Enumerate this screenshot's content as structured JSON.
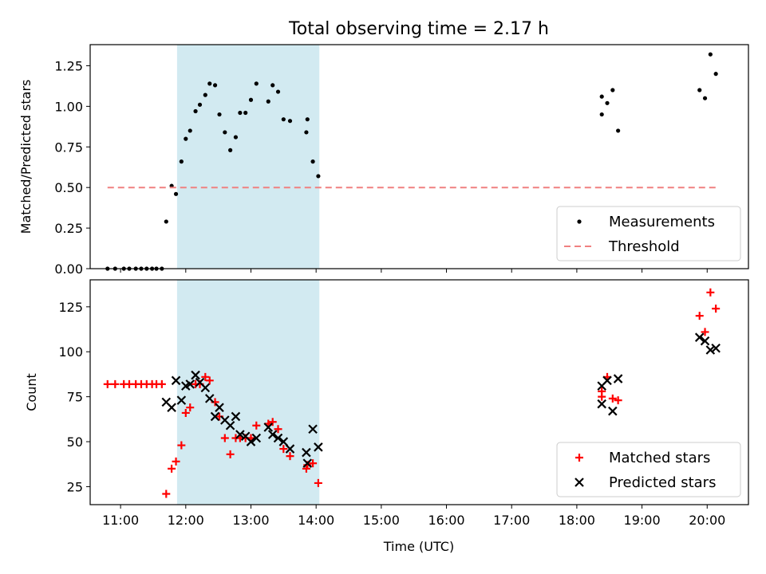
{
  "chart_data": {
    "type": "scatter",
    "title": "Total observing time = 2.17 h",
    "xlabel": "Time (UTC)",
    "xticks": [
      "11:00",
      "12:00",
      "13:00",
      "14:00",
      "15:00",
      "16:00",
      "17:00",
      "18:00",
      "19:00",
      "20:00"
    ],
    "xlim": [
      "10:32",
      "20:38"
    ],
    "shaded_interval": {
      "start": "11:52",
      "end": "14:03",
      "color": "#add8e6"
    },
    "panels": [
      {
        "ylabel": "Matched/Predicted stars",
        "ylim": [
          0,
          1.38
        ],
        "yticks": [
          "0.00",
          "0.25",
          "0.50",
          "0.75",
          "1.00",
          "1.25"
        ],
        "legend": {
          "placement": "lower-right",
          "entries": [
            {
              "label": "Measurements",
              "marker": "dot",
              "color": "#000000"
            },
            {
              "label": "Threshold",
              "marker": "dashed-line",
              "color": "#f08080"
            }
          ]
        },
        "series": [
          {
            "name": "Measurements",
            "marker": "dot",
            "color": "#000000",
            "points": [
              [
                "10:48",
                0.0
              ],
              [
                "10:55",
                0.0
              ],
              [
                "11:03",
                0.0
              ],
              [
                "11:08",
                0.0
              ],
              [
                "11:14",
                0.0
              ],
              [
                "11:19",
                0.0
              ],
              [
                "11:24",
                0.0
              ],
              [
                "11:29",
                0.0
              ],
              [
                "11:33",
                0.0
              ],
              [
                "11:38",
                0.0
              ],
              [
                "11:42",
                0.29
              ],
              [
                "11:47",
                0.51
              ],
              [
                "11:51",
                0.46
              ],
              [
                "11:56",
                0.66
              ],
              [
                "12:00",
                0.8
              ],
              [
                "12:04",
                0.85
              ],
              [
                "12:09",
                0.97
              ],
              [
                "12:13",
                1.01
              ],
              [
                "12:18",
                1.07
              ],
              [
                "12:22",
                1.14
              ],
              [
                "12:27",
                1.13
              ],
              [
                "12:31",
                0.95
              ],
              [
                "12:36",
                0.84
              ],
              [
                "12:41",
                0.73
              ],
              [
                "12:46",
                0.81
              ],
              [
                "12:50",
                0.96
              ],
              [
                "12:55",
                0.96
              ],
              [
                "13:00",
                1.04
              ],
              [
                "13:05",
                1.14
              ],
              [
                "13:16",
                1.03
              ],
              [
                "13:20",
                1.13
              ],
              [
                "13:25",
                1.09
              ],
              [
                "13:30",
                0.92
              ],
              [
                "13:36",
                0.91
              ],
              [
                "13:51",
                0.84
              ],
              [
                "13:52",
                0.92
              ],
              [
                "13:57",
                0.66
              ],
              [
                "14:02",
                0.57
              ],
              [
                "18:23",
                1.06
              ],
              [
                "18:23",
                0.95
              ],
              [
                "18:28",
                1.02
              ],
              [
                "18:33",
                1.1
              ],
              [
                "18:38",
                0.85
              ],
              [
                "19:53",
                1.1
              ],
              [
                "19:58",
                1.05
              ],
              [
                "20:03",
                1.32
              ],
              [
                "20:08",
                1.2
              ]
            ]
          },
          {
            "name": "Threshold",
            "marker": "dashed-line",
            "color": "#f08080",
            "points": [
              [
                "10:48",
                0.5
              ],
              [
                "20:08",
                0.5
              ]
            ]
          }
        ]
      },
      {
        "ylabel": "Count",
        "ylim": [
          15,
          140
        ],
        "yticks": [
          "25",
          "50",
          "75",
          "100",
          "125"
        ],
        "legend": {
          "placement": "lower-right",
          "entries": [
            {
              "label": "Matched stars",
              "marker": "plus",
              "color": "#ff0000"
            },
            {
              "label": "Predicted stars",
              "marker": "cross",
              "color": "#000000"
            }
          ]
        },
        "series": [
          {
            "name": "Matched stars",
            "marker": "plus",
            "color": "#ff0000",
            "points": [
              [
                "10:48",
                82
              ],
              [
                "10:55",
                82
              ],
              [
                "11:03",
                82
              ],
              [
                "11:08",
                82
              ],
              [
                "11:14",
                82
              ],
              [
                "11:19",
                82
              ],
              [
                "11:24",
                82
              ],
              [
                "11:29",
                82
              ],
              [
                "11:33",
                82
              ],
              [
                "11:38",
                82
              ],
              [
                "11:42",
                21
              ],
              [
                "11:47",
                35
              ],
              [
                "11:51",
                39
              ],
              [
                "11:56",
                48
              ],
              [
                "12:00",
                66
              ],
              [
                "12:04",
                69
              ],
              [
                "12:09",
                82
              ],
              [
                "12:13",
                82
              ],
              [
                "12:18",
                86
              ],
              [
                "12:22",
                84
              ],
              [
                "12:27",
                72
              ],
              [
                "12:31",
                64
              ],
              [
                "12:36",
                52
              ],
              [
                "12:41",
                43
              ],
              [
                "12:46",
                52
              ],
              [
                "12:50",
                52
              ],
              [
                "12:55",
                52
              ],
              [
                "13:00",
                52
              ],
              [
                "13:05",
                59
              ],
              [
                "13:16",
                60
              ],
              [
                "13:20",
                61
              ],
              [
                "13:25",
                57
              ],
              [
                "13:30",
                46
              ],
              [
                "13:36",
                42
              ],
              [
                "13:51",
                35
              ],
              [
                "13:52",
                37
              ],
              [
                "13:57",
                38
              ],
              [
                "14:02",
                27
              ],
              [
                "18:23",
                78
              ],
              [
                "18:23",
                75
              ],
              [
                "18:28",
                86
              ],
              [
                "18:33",
                74
              ],
              [
                "18:38",
                73
              ],
              [
                "19:53",
                120
              ],
              [
                "19:58",
                111
              ],
              [
                "20:03",
                133
              ],
              [
                "20:08",
                124
              ]
            ]
          },
          {
            "name": "Predicted stars",
            "marker": "cross",
            "color": "#000000",
            "points": [
              [
                "11:42",
                72
              ],
              [
                "11:47",
                69
              ],
              [
                "11:51",
                84
              ],
              [
                "11:56",
                73
              ],
              [
                "12:00",
                81
              ],
              [
                "12:04",
                82
              ],
              [
                "12:09",
                87
              ],
              [
                "12:13",
                83
              ],
              [
                "12:18",
                80
              ],
              [
                "12:22",
                74
              ],
              [
                "12:27",
                64
              ],
              [
                "12:31",
                69
              ],
              [
                "12:36",
                62
              ],
              [
                "12:41",
                59
              ],
              [
                "12:46",
                64
              ],
              [
                "12:50",
                54
              ],
              [
                "12:55",
                53
              ],
              [
                "13:00",
                50
              ],
              [
                "13:05",
                52
              ],
              [
                "13:16",
                58
              ],
              [
                "13:20",
                54
              ],
              [
                "13:25",
                52
              ],
              [
                "13:30",
                50
              ],
              [
                "13:36",
                46
              ],
              [
                "13:51",
                44
              ],
              [
                "13:52",
                38
              ],
              [
                "13:57",
                57
              ],
              [
                "14:02",
                47
              ],
              [
                "18:23",
                81
              ],
              [
                "18:23",
                71
              ],
              [
                "18:28",
                84
              ],
              [
                "18:33",
                67
              ],
              [
                "18:38",
                85
              ],
              [
                "19:53",
                108
              ],
              [
                "19:58",
                106
              ],
              [
                "20:03",
                101
              ],
              [
                "20:08",
                102
              ]
            ]
          }
        ]
      }
    ]
  }
}
